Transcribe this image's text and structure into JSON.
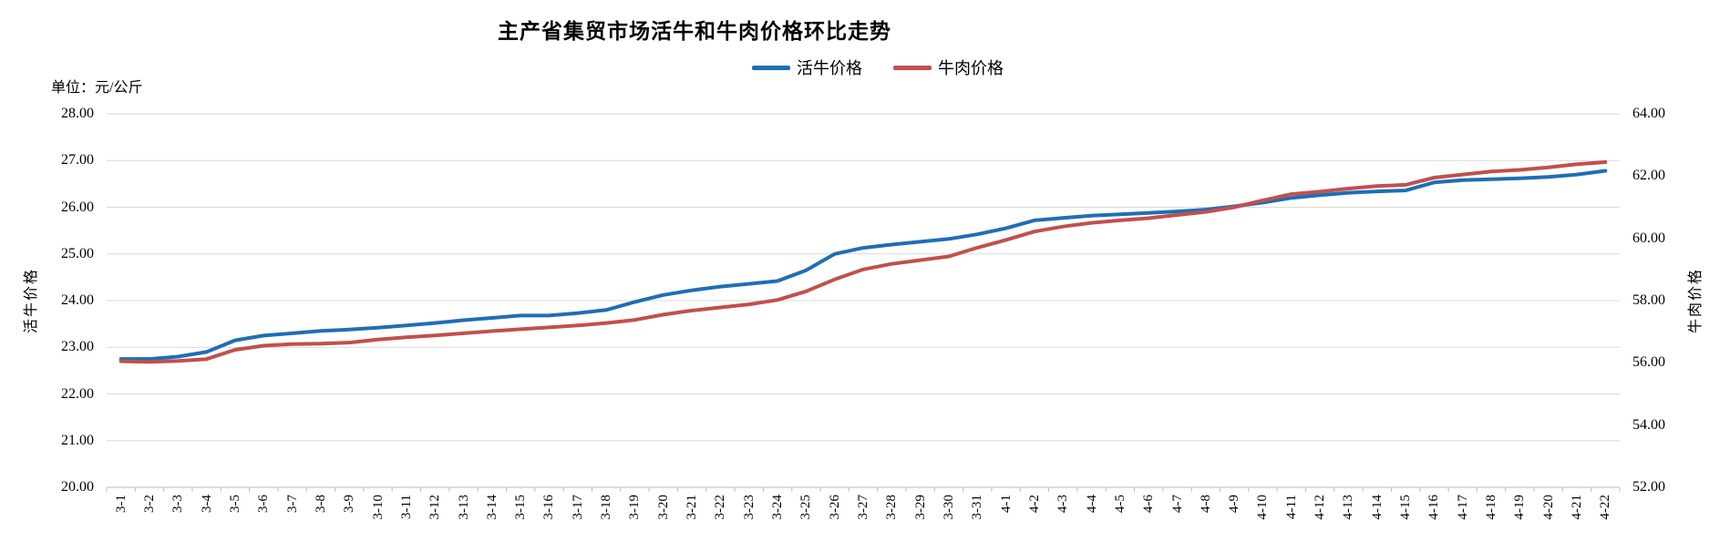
{
  "title": "主产省集贸市场活牛和牛肉价格环比走势",
  "unit_label": "单位：元/公斤",
  "legend": [
    {
      "label": "活牛价格",
      "color": "#1f6eb5"
    },
    {
      "label": "牛肉价格",
      "color": "#c0504d"
    }
  ],
  "left_axis_title": "活牛价格",
  "right_axis_title": "牛肉价格",
  "colors": {
    "live_cattle_line": "#1f6eb5",
    "beef_line": "#c0504d",
    "gridline": "#d9d9d9",
    "axis_line": "#bfbfbf",
    "text": "#000000"
  },
  "chart_data": {
    "type": "line",
    "title": "主产省集贸市场活牛和牛肉价格环比走势",
    "unit": "元/公斤",
    "grid": true,
    "legend_position": "top-center",
    "categories": [
      "3-1",
      "3-2",
      "3-3",
      "3-4",
      "3-5",
      "3-6",
      "3-7",
      "3-8",
      "3-9",
      "3-10",
      "3-11",
      "3-12",
      "3-13",
      "3-14",
      "3-15",
      "3-16",
      "3-17",
      "3-18",
      "3-19",
      "3-20",
      "3-21",
      "3-22",
      "3-23",
      "3-24",
      "3-25",
      "3-26",
      "3-27",
      "3-28",
      "3-29",
      "3-30",
      "3-31",
      "4-1",
      "4-2",
      "4-3",
      "4-4",
      "4-5",
      "4-6",
      "4-7",
      "4-8",
      "4-9",
      "4-10",
      "4-11",
      "4-12",
      "4-13",
      "4-14",
      "4-15",
      "4-16",
      "4-17",
      "4-18",
      "4-19",
      "4-20",
      "4-21",
      "4-22"
    ],
    "left_axis": {
      "label": "活牛价格",
      "min": 20,
      "max": 28,
      "step": 1,
      "tick_format": "0.00"
    },
    "right_axis": {
      "label": "牛肉价格",
      "min": 52,
      "max": 64,
      "step": 2,
      "tick_format": "0.00"
    },
    "series": [
      {
        "name": "活牛价格",
        "axis": "left",
        "color": "#1f6eb5",
        "values": [
          22.75,
          22.75,
          22.8,
          22.9,
          23.15,
          23.25,
          23.3,
          23.35,
          23.38,
          23.42,
          23.47,
          23.52,
          23.58,
          23.63,
          23.68,
          23.68,
          23.73,
          23.8,
          23.97,
          24.12,
          24.22,
          24.3,
          24.36,
          24.42,
          24.65,
          25.0,
          25.13,
          25.2,
          25.26,
          25.32,
          25.42,
          25.55,
          25.72,
          25.77,
          25.82,
          25.85,
          25.88,
          25.91,
          25.95,
          26.02,
          26.1,
          26.2,
          26.26,
          26.31,
          26.34,
          26.36,
          26.53,
          26.58,
          26.6,
          26.62,
          26.65,
          26.7,
          26.78
        ]
      },
      {
        "name": "牛肉价格",
        "axis": "right",
        "color": "#c0504d",
        "values": [
          56.05,
          56.03,
          56.06,
          56.12,
          56.42,
          56.55,
          56.6,
          56.62,
          56.65,
          56.75,
          56.82,
          56.88,
          56.95,
          57.02,
          57.08,
          57.14,
          57.2,
          57.28,
          57.38,
          57.55,
          57.68,
          57.78,
          57.88,
          58.02,
          58.3,
          58.68,
          59.0,
          59.18,
          59.3,
          59.42,
          59.7,
          59.95,
          60.22,
          60.38,
          60.5,
          60.58,
          60.65,
          60.75,
          60.85,
          61.0,
          61.22,
          61.42,
          61.5,
          61.6,
          61.68,
          61.72,
          61.95,
          62.05,
          62.15,
          62.2,
          62.28,
          62.38,
          62.45
        ]
      }
    ]
  }
}
